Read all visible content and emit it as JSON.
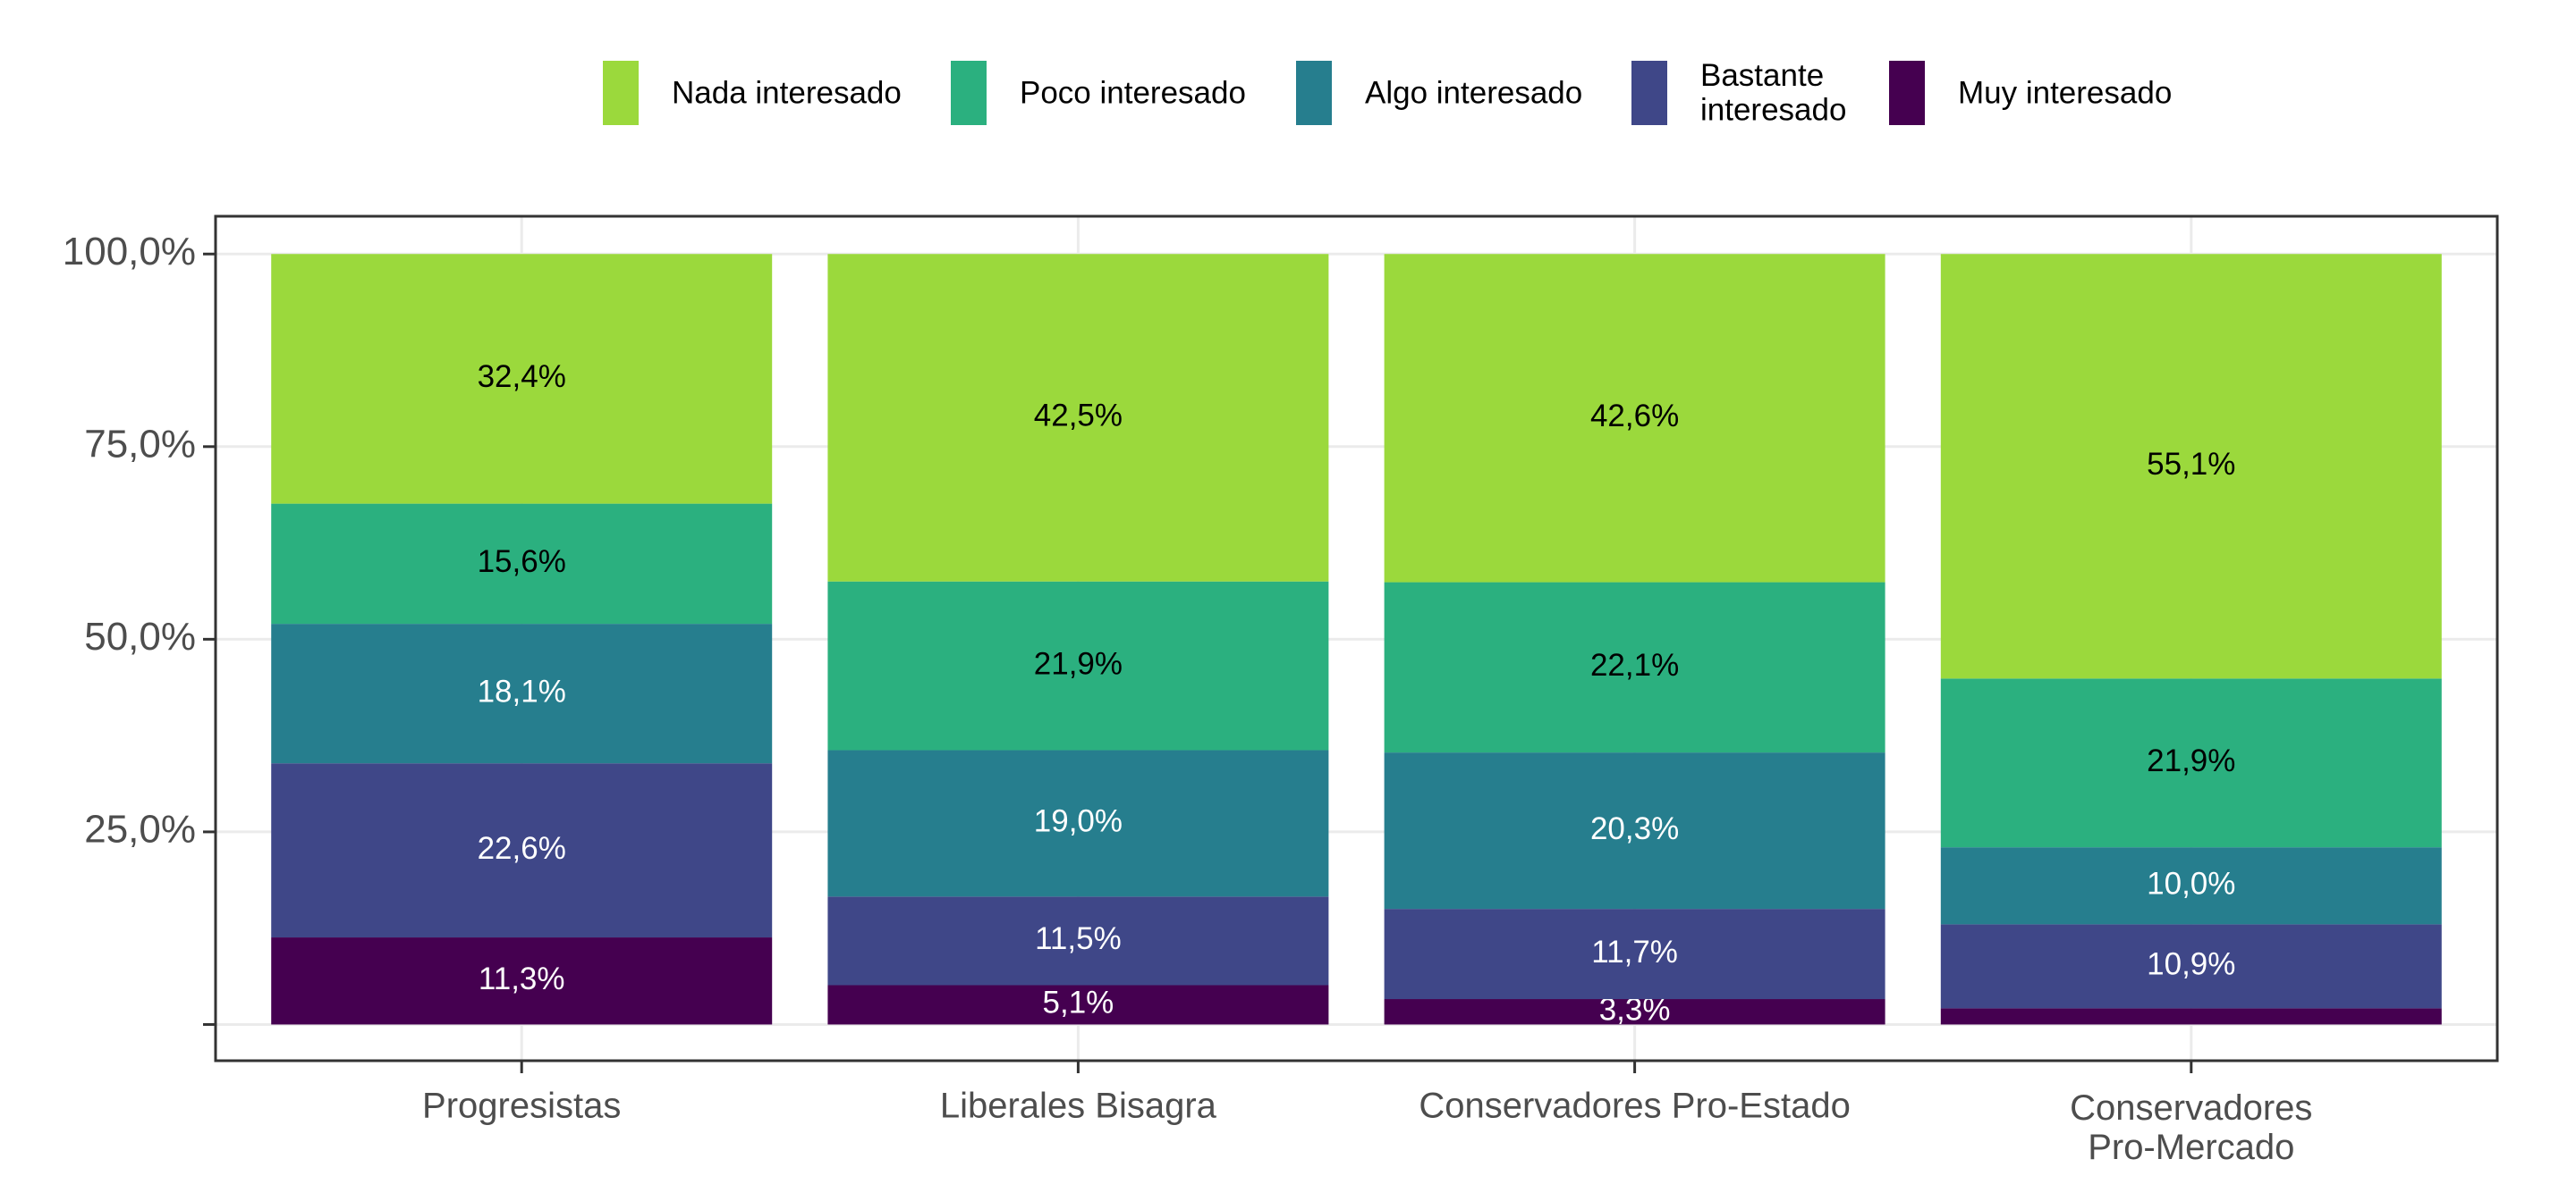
{
  "chart_data": {
    "type": "stacked_bar",
    "categories": [
      "Progresistas",
      "Liberales Bisagra",
      "Conservadores Pro-Estado",
      "Conservadores\nPro-Mercado"
    ],
    "series": [
      {
        "name": "Nada interesado",
        "color": "#9bd93c",
        "values": [
          32.4,
          42.5,
          42.6,
          55.1
        ],
        "value_labels": [
          "32,4%",
          "42,5%",
          "42,6%",
          "55,1%"
        ]
      },
      {
        "name": "Poco interesado",
        "color": "#2bb07f",
        "values": [
          15.6,
          21.9,
          22.1,
          21.9
        ],
        "value_labels": [
          "15,6%",
          "21,9%",
          "22,1%",
          "21,9%"
        ]
      },
      {
        "name": "Algo interesado",
        "color": "#267e8e",
        "values": [
          18.1,
          19.0,
          20.3,
          10.0
        ],
        "value_labels": [
          "18,1%",
          "19,0%",
          "20,3%",
          "10,0%"
        ]
      },
      {
        "name": "Bastante\ninteresado",
        "color": "#3f4788",
        "values": [
          22.6,
          11.5,
          11.7,
          10.9
        ],
        "value_labels": [
          "22,6%",
          "11,5%",
          "11,7%",
          "10,9%"
        ]
      },
      {
        "name": "Muy interesado",
        "color": "#450050",
        "values": [
          11.3,
          5.1,
          3.3,
          2.1
        ],
        "value_labels": [
          "11,3%",
          "5,1%",
          "3,3%",
          null
        ]
      }
    ],
    "ylim": [
      -4.7,
      104.9
    ],
    "yticks": [
      {
        "value": 0,
        "label": null
      },
      {
        "value": 25,
        "label": "25,0%"
      },
      {
        "value": 50,
        "label": "50,0%"
      },
      {
        "value": 75,
        "label": "75,0%"
      },
      {
        "value": 100,
        "label": "100,0%"
      }
    ],
    "grid": true,
    "legend": "top"
  }
}
